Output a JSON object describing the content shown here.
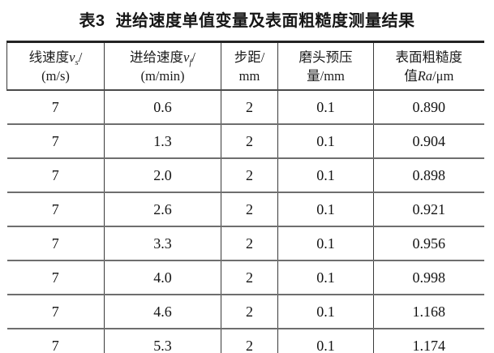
{
  "caption": {
    "label": "表3",
    "text": "进给速度单值变量及表面粗糙度测量结果"
  },
  "table": {
    "headers": {
      "col1": {
        "line1_text": "线速度",
        "var": "v",
        "sub": "s",
        "slash": "/",
        "line2": "(m/s)"
      },
      "col2": {
        "line1_text": "进给速度",
        "var": "v",
        "sub": "f",
        "slash": "/",
        "line2": "(m/min)"
      },
      "col3": {
        "line1": "步距/",
        "line2": "mm"
      },
      "col4": {
        "line1": "磨头预压",
        "line2": "量/mm"
      },
      "col5": {
        "line1": "表面粗糙度",
        "line2_prefix": "值",
        "line2_var": "Ra",
        "line2_unit": "/μm"
      }
    },
    "rows": [
      [
        "7",
        "0.6",
        "2",
        "0.1",
        "0.890"
      ],
      [
        "7",
        "1.3",
        "2",
        "0.1",
        "0.904"
      ],
      [
        "7",
        "2.0",
        "2",
        "0.1",
        "0.898"
      ],
      [
        "7",
        "2.6",
        "2",
        "0.1",
        "0.921"
      ],
      [
        "7",
        "3.3",
        "2",
        "0.1",
        "0.956"
      ],
      [
        "7",
        "4.0",
        "2",
        "0.1",
        "0.998"
      ],
      [
        "7",
        "4.6",
        "2",
        "0.1",
        "1.168"
      ],
      [
        "7",
        "5.3",
        "2",
        "0.1",
        "1.174"
      ]
    ]
  }
}
